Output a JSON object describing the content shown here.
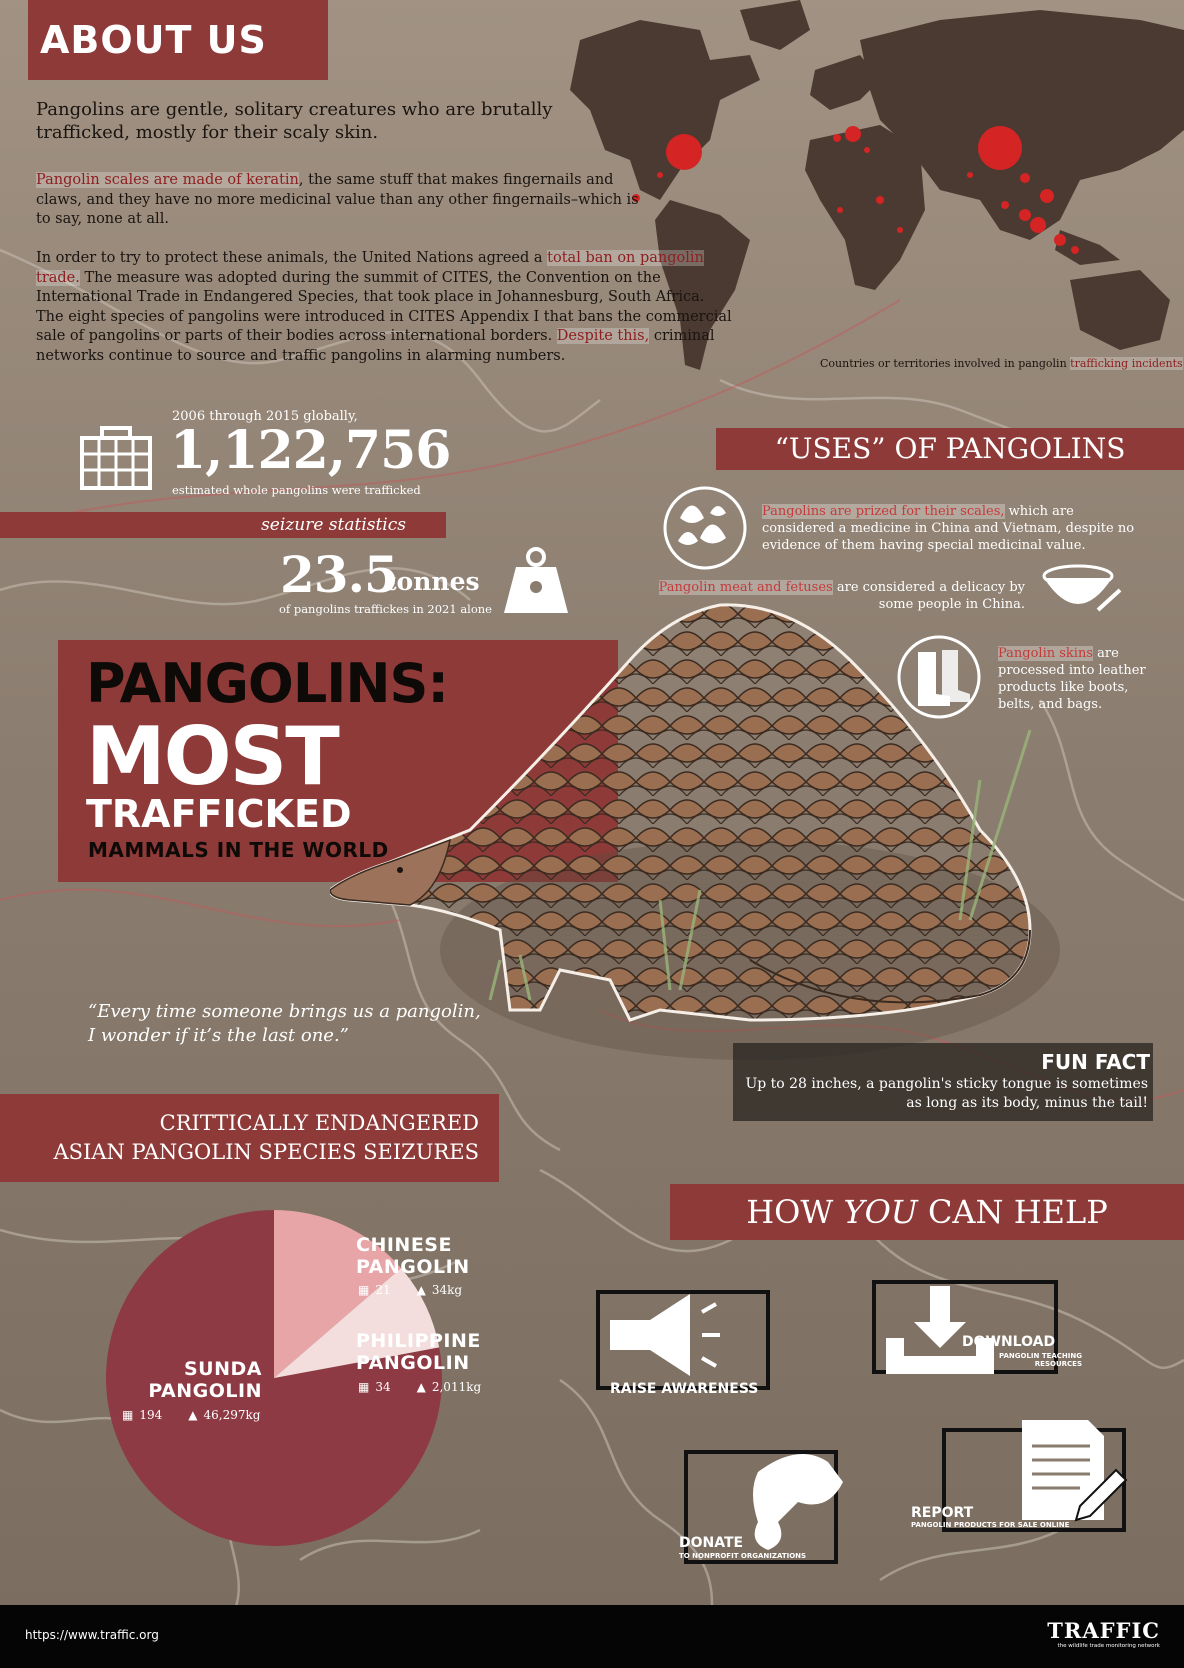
{
  "about": {
    "title": "ABOUT US",
    "intro": "Pangolins are gentle, solitary creatures who are brutally trafficked, mostly for their scaly skin.",
    "para1_hl": "Pangolin scales are made of keratin",
    "para1_rest": ", the same stuff that makes fingernails and claws, and they have no more medicinal value than any other fingernails–which is to say, none at all.",
    "para2_a": "In order to try to protect these animals, the United Nations agreed a ",
    "para2_hl1": "total ban on pangolin trade.",
    "para2_b": " The measure was adopted during the summit of CITES, the Convention on the International Trade in Endangered Species, that took place in Johannesburg, South Africa. The eight species of pangolins were introduced in CITES Appendix I that bans the commercial sale of pangolins or parts of their bodies across international borders. ",
    "para2_hl2": "Despite this,",
    "para2_c": " criminal networks continue to source and traffic pangolins in alarming numbers."
  },
  "map": {
    "caption_a": "Countries or territories involved in pangolin ",
    "caption_hl": "trafficking incidents"
  },
  "stats": {
    "s1_pre": "2006 through 2015 globally,",
    "s1_num": "1,122,756",
    "s1_post": "estimated whole pangolins were trafficked",
    "seizure_label": "seizure statistics",
    "s2_num": "23.5",
    "s2_unit": "tonnes",
    "s2_post": "of pangolins traffickes in 2021 alone"
  },
  "uses": {
    "title": "“USES” OF PANGOLINS",
    "u1_hl": "Pangolins are prized for their scales,",
    "u1_rest": " which are considered a medicine in China and Vietnam, despite no evidence of them having special medicinal value.",
    "u2_hl": "Pangolin meat and fetuses",
    "u2_rest": " are considered a delicacy by some people in China.",
    "u3_hl": "Pangolin skins",
    "u3_rest": " are processed into leather products like boots, belts, and bags."
  },
  "hero": {
    "line1": "PANGOLINS:",
    "line2": "MOST",
    "line3": "TRAFFICKED",
    "line4": "MAMMALS IN THE WORLD"
  },
  "quote": "“Every time someone brings us a pangolin, I wonder if it’s the last one.”",
  "fun_fact": {
    "title": "FUN FACT",
    "text": "Up to 28 inches, a pangolin's sticky tongue is sometimes as long as its body, minus the tail!"
  },
  "seizures": {
    "title_line1": "CRITTICALLY ENDANGERED",
    "title_line2": "ASIAN PANGOLIN SPECIES SEIZURES",
    "species": [
      {
        "name_line1": "CHINESE",
        "name_line2": "PANGOLIN",
        "count": "21",
        "weight": "34kg"
      },
      {
        "name_line1": "PHILIPPINE",
        "name_line2": "PANGOLIN",
        "count": "34",
        "weight": "2,011kg"
      },
      {
        "name_line1": "SUNDA",
        "name_line2": "PANGOLIN",
        "count": "194",
        "weight": "46,297kg"
      }
    ]
  },
  "chart_data": {
    "type": "pie",
    "categories": [
      "Sunda Pangolin",
      "Philippine Pangolin",
      "Chinese Pangolin"
    ],
    "values": [
      194,
      34,
      21
    ],
    "colors": [
      "#8e3a44",
      "#e8a5a8",
      "#f3dedd"
    ]
  },
  "help": {
    "title_a": "HOW ",
    "title_em": "YOU",
    "title_b": " CAN HELP",
    "raise": "RAISE AWARENESS",
    "download": "DOWNLOAD",
    "download_sub": "PANGOLIN TEACHING RESOURCES",
    "donate": "DONATE",
    "donate_sub": "TO NONPROFIT ORGANIZATIONS",
    "report": "REPORT",
    "report_sub": "PANGOLIN PRODUCTS FOR SALE ONLINE"
  },
  "footer": {
    "url": "https://www.traffic.org",
    "logo": "TRAFFIC",
    "tagline": "the wildlife trade monitoring network"
  },
  "colors": {
    "banner": "#8e3a38",
    "background": "#8a7c6e",
    "map": "#4a3a31",
    "hotspot": "#d42424"
  }
}
